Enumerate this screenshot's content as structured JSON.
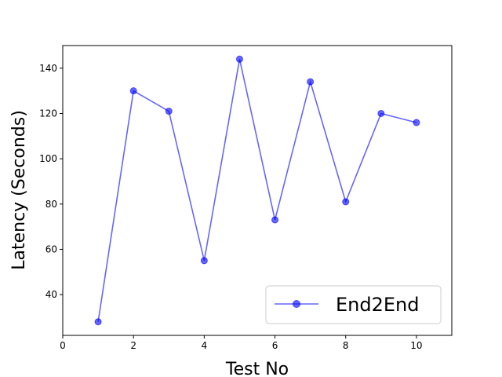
{
  "chart_data": {
    "type": "line",
    "title": "",
    "xlabel": "Test No",
    "ylabel": "Latency (Seconds)",
    "xlim": [
      0,
      11
    ],
    "ylim": [
      22,
      150
    ],
    "xticks": [
      0,
      2,
      4,
      6,
      8,
      10
    ],
    "yticks": [
      40,
      60,
      80,
      100,
      120,
      140
    ],
    "grid": false,
    "legend_position": "lower-right",
    "series": [
      {
        "name": "End2End",
        "color": "#0000ff",
        "marker": "circle",
        "x": [
          1,
          2,
          3,
          4,
          5,
          6,
          7,
          8,
          9,
          10
        ],
        "y": [
          28,
          130,
          121,
          55,
          144,
          73,
          134,
          81,
          120,
          116
        ]
      }
    ]
  }
}
